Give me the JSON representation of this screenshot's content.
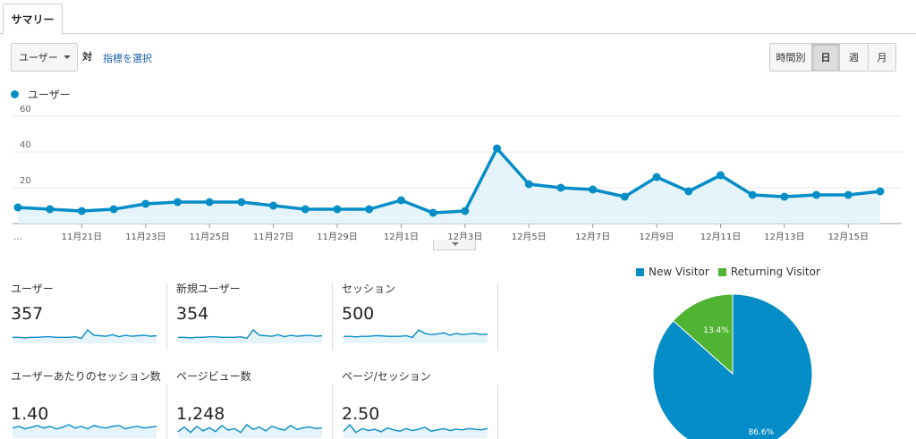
{
  "tab": {
    "label": "サマリー"
  },
  "toolbar": {
    "metric_select": "ユーザー",
    "vs_label": "対",
    "pick_metric": "指標を選択",
    "periods": [
      "時間別",
      "日",
      "週",
      "月"
    ],
    "selected_period": "日"
  },
  "main_chart": {
    "legend": "ユーザー",
    "color": "#058dc7",
    "y_ticks": [
      "60",
      "40",
      "20"
    ],
    "x_ticks": [
      "...",
      "11月21日",
      "11月23日",
      "11月25日",
      "11月27日",
      "11月29日",
      "12月1日",
      "12月3日",
      "12月5日",
      "12月7日",
      "12月9日",
      "12月11日",
      "12月13日",
      "12月15日"
    ]
  },
  "chart_data": [
    {
      "type": "area",
      "title": "",
      "series": [
        {
          "name": "ユーザー",
          "color": "#058dc7",
          "values": [
            9,
            8,
            7,
            8,
            11,
            12,
            12,
            12,
            10,
            8,
            8,
            8,
            13,
            6,
            7,
            42,
            22,
            20,
            19,
            15,
            26,
            18,
            27,
            16,
            15,
            16,
            16,
            18
          ]
        }
      ],
      "ylim": [
        0,
        60
      ],
      "y_ticks": [
        20,
        40,
        60
      ],
      "x_tick_labels": [
        "11月21日",
        "11月23日",
        "11月25日",
        "11月27日",
        "11月29日",
        "12月1日",
        "12月3日",
        "12月5日",
        "12月7日",
        "12月9日",
        "12月11日",
        "12月13日",
        "12月15日"
      ],
      "grid": true
    },
    {
      "type": "pie",
      "labels": [
        "New Visitor",
        "Returning Visitor"
      ],
      "values": [
        86.6,
        13.4
      ],
      "colors": [
        "#058dc7",
        "#50b432"
      ],
      "slice_labels": [
        "86.6%",
        "13.4%"
      ],
      "legend_placement": "top"
    }
  ],
  "tiles": [
    {
      "label": "ユーザー",
      "value": "357",
      "spark": [
        8,
        8,
        7,
        8,
        8,
        9,
        9,
        8,
        8,
        8,
        9,
        6,
        22,
        12,
        11,
        10,
        13,
        9,
        12,
        10,
        11,
        12,
        10,
        11
      ]
    },
    {
      "label": "新規ユーザー",
      "value": "354",
      "spark": [
        8,
        8,
        7,
        8,
        8,
        9,
        9,
        8,
        8,
        8,
        9,
        6,
        22,
        12,
        11,
        10,
        13,
        9,
        12,
        10,
        11,
        12,
        10,
        11
      ]
    },
    {
      "label": "セッション",
      "value": "500",
      "spark": [
        9,
        9,
        8,
        9,
        9,
        10,
        10,
        9,
        9,
        9,
        10,
        7,
        20,
        14,
        12,
        13,
        15,
        11,
        14,
        12,
        13,
        14,
        12,
        13
      ]
    },
    {
      "label": "ユーザーあたりのセッション数",
      "value": "1.40",
      "spark": [
        10,
        12,
        9,
        11,
        13,
        10,
        12,
        9,
        11,
        14,
        10,
        12,
        9,
        13,
        11,
        10,
        12,
        13,
        9,
        11,
        12,
        10,
        11,
        12
      ]
    },
    {
      "label": "ページビュー数",
      "value": "1,248",
      "spark": [
        6,
        12,
        5,
        13,
        7,
        11,
        6,
        14,
        8,
        10,
        5,
        15,
        9,
        12,
        7,
        13,
        10,
        8,
        14,
        9,
        11,
        12,
        10,
        11
      ]
    },
    {
      "label": "ページ/セッション",
      "value": "2.50",
      "spark": [
        8,
        18,
        6,
        12,
        9,
        11,
        7,
        13,
        10,
        8,
        12,
        9,
        11,
        14,
        8,
        10,
        12,
        9,
        11,
        10,
        12,
        11,
        10,
        12
      ]
    }
  ]
}
